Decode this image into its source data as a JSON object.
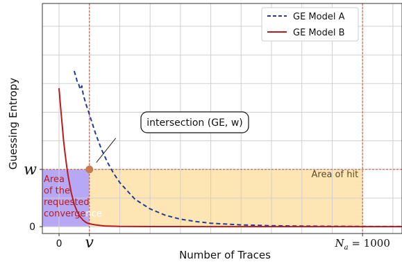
{
  "chart_data": {
    "type": "line",
    "xlabel": "Number of Traces",
    "ylabel": "Guessing Entropy",
    "x_ticks": [
      {
        "label": "0",
        "value": 0,
        "style": "sans"
      },
      {
        "label": "v",
        "value": 100,
        "style": "math"
      },
      {
        "label_math": "N",
        "label_sub": "a",
        "label_rest": "= 1000",
        "value": 1000,
        "style": "math"
      }
    ],
    "y_ticks": [
      {
        "label": "0",
        "value": 0,
        "style": "sans"
      },
      {
        "label": "w",
        "value": 1,
        "style": "math"
      }
    ],
    "xlim": [
      -55,
      1130
    ],
    "ylim": [
      -0.12,
      3.9
    ],
    "grid": true,
    "series": [
      {
        "name": "GE Model A",
        "color": "#1f3b99",
        "dash": "6,4",
        "x": [
          50,
          55,
          60,
          65,
          70,
          75,
          80,
          90,
          100,
          120,
          140,
          160,
          180,
          200,
          250,
          300,
          350,
          400,
          450,
          500,
          600,
          700,
          800,
          900,
          1000,
          1100,
          1130
        ],
        "y": [
          2.72,
          2.63,
          2.53,
          2.48,
          2.4,
          2.46,
          2.3,
          2.12,
          1.96,
          1.63,
          1.35,
          1.12,
          0.93,
          0.77,
          0.48,
          0.31,
          0.2,
          0.13,
          0.09,
          0.06,
          0.03,
          0.016,
          0.01,
          0.006,
          0.004,
          0.003,
          0.003
        ]
      },
      {
        "name": "GE Model B",
        "color": "#b71c1c",
        "dash": "",
        "x": [
          0,
          5,
          10,
          15,
          20,
          25,
          30,
          40,
          50,
          60,
          70,
          80,
          90,
          100,
          120,
          150,
          200,
          300,
          500,
          800,
          1130
        ],
        "y": [
          2.42,
          2.1,
          1.8,
          1.5,
          1.27,
          1.06,
          0.88,
          0.6,
          0.39,
          0.26,
          0.17,
          0.11,
          0.07,
          0.05,
          0.03,
          0.012,
          0.004,
          0.001,
          0.0,
          0.0,
          0.0
        ]
      }
    ],
    "intersection": {
      "x": 100,
      "y": 1,
      "label": "intersection (GE, w)",
      "color": "#c97a4a"
    },
    "regions": [
      {
        "label": "Area of the requested convergence",
        "lines": [
          "Area",
          "of the",
          "requested",
          "convergence"
        ],
        "x_range": [
          -55,
          100
        ],
        "y_range": [
          0,
          1
        ],
        "fill": "#b7a8f5",
        "text_color": "#b71c1c"
      },
      {
        "label": "Area of hit",
        "x_range": [
          100,
          1000
        ],
        "y_range": [
          0,
          1
        ],
        "fill": "#fde6b3",
        "text_color": "#5a4a2a"
      }
    ],
    "reference_lines": [
      {
        "axis": "x",
        "value": 100,
        "color": "#c0503c"
      },
      {
        "axis": "x",
        "value": 1000,
        "color": "#c0503c"
      },
      {
        "axis": "y",
        "value": 1,
        "color": "#c0503c"
      }
    ],
    "legend_position": "top-right"
  }
}
